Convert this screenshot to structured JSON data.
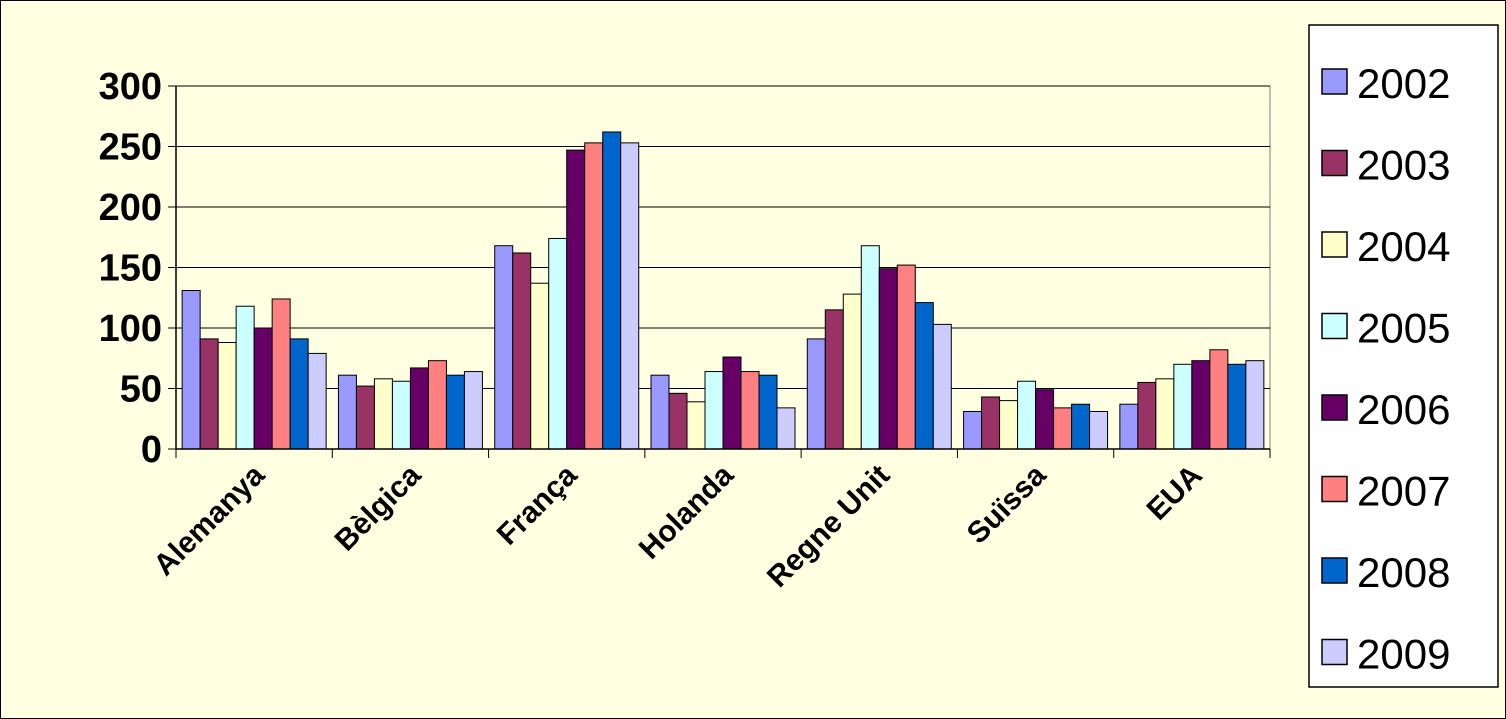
{
  "chart_data": {
    "type": "bar",
    "categories": [
      "Alemanya",
      "Bèlgica",
      "França",
      "Holanda",
      "Regne Unit",
      "Suïssa",
      "EUA"
    ],
    "series": [
      {
        "name": "2002",
        "color": "#9999ff",
        "values": [
          131,
          61,
          168,
          61,
          91,
          31,
          37
        ]
      },
      {
        "name": "2003",
        "color": "#993366",
        "values": [
          91,
          52,
          162,
          46,
          115,
          43,
          55
        ]
      },
      {
        "name": "2004",
        "color": "#ffffcc",
        "values": [
          88,
          58,
          137,
          39,
          128,
          40,
          58
        ]
      },
      {
        "name": "2005",
        "color": "#ccffff",
        "values": [
          118,
          56,
          174,
          64,
          168,
          56,
          70
        ]
      },
      {
        "name": "2006",
        "color": "#660066",
        "values": [
          100,
          67,
          247,
          76,
          149,
          49,
          73
        ]
      },
      {
        "name": "2007",
        "color": "#ff8080",
        "values": [
          124,
          73,
          253,
          64,
          152,
          34,
          82
        ]
      },
      {
        "name": "2008",
        "color": "#0066cc",
        "values": [
          91,
          61,
          262,
          61,
          121,
          37,
          70
        ]
      },
      {
        "name": "2009",
        "color": "#ccccff",
        "values": [
          79,
          64,
          253,
          34,
          103,
          31,
          73
        ]
      }
    ],
    "yticks": [
      "0",
      "50",
      "100",
      "150",
      "200",
      "250",
      "300"
    ],
    "ylim": [
      0,
      300
    ],
    "grid": true,
    "legend_position": "right",
    "xlabel": "",
    "ylabel": "",
    "title": ""
  }
}
